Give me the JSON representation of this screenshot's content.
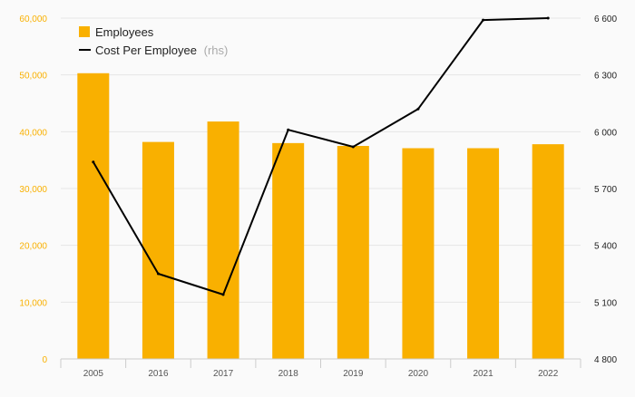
{
  "chart_data": {
    "type": "bar",
    "categories": [
      "2005",
      "2016",
      "2017",
      "2018",
      "2019",
      "2020",
      "2021",
      "2022"
    ],
    "series": [
      {
        "name": "Employees",
        "kind": "bar",
        "axis": "left",
        "color": "#f9b000",
        "values": [
          50300,
          38200,
          41800,
          38000,
          37500,
          37100,
          37100,
          37800
        ]
      },
      {
        "name": "Cost Per Employee",
        "suffix": "(rhs)",
        "kind": "line",
        "axis": "right",
        "color": "#000000",
        "values": [
          5840,
          5250,
          5140,
          6010,
          5920,
          6120,
          6590,
          6600
        ]
      }
    ],
    "left_axis": {
      "ylim": [
        0,
        60000
      ],
      "ticks": [
        0,
        10000,
        20000,
        30000,
        40000,
        50000,
        60000
      ],
      "tick_labels": [
        "0",
        "10,000",
        "20,000",
        "30,000",
        "40,000",
        "50,000",
        "60,000"
      ],
      "color": "#f9b000"
    },
    "right_axis": {
      "ylim": [
        4800,
        6600
      ],
      "ticks": [
        4800,
        5100,
        5400,
        5700,
        6000,
        6300,
        6600
      ],
      "tick_labels": [
        "4 800",
        "5 100",
        "5 400",
        "5 700",
        "6 000",
        "6 300",
        "6 600"
      ],
      "color": "#222222"
    },
    "legend": {
      "position": "top-left",
      "entries": [
        {
          "label": "Employees",
          "suffix": ""
        },
        {
          "label": "Cost Per Employee",
          "suffix": "(rhs)"
        }
      ]
    },
    "grid": true,
    "colors": {
      "background": "#fafafa",
      "grid": "#e6e6e6",
      "category_label": "#555555",
      "suffix_text": "#aaaaaa"
    }
  }
}
